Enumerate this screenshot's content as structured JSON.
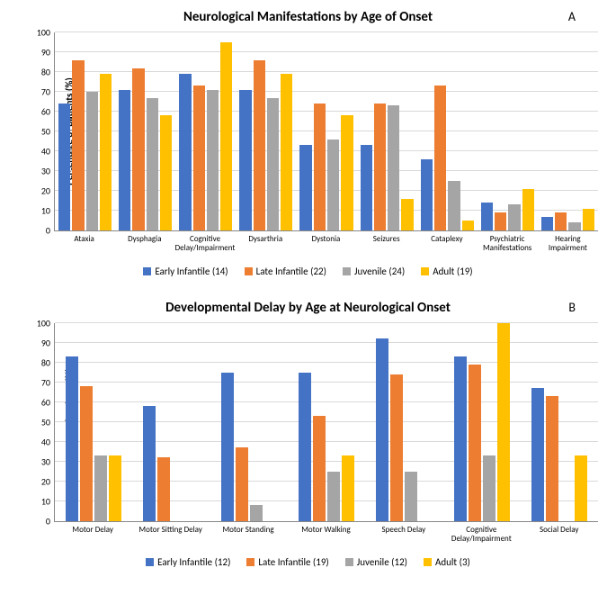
{
  "colors": {
    "series": [
      "#4472c4",
      "#ed7d31",
      "#a5a5a5",
      "#ffc000"
    ],
    "grid": "#d9d9d9",
    "axis": "#888888",
    "bg": "#ffffff"
  },
  "yAxis": {
    "label": "Percentage of patients (%)",
    "min": 0,
    "max": 100,
    "step": 10,
    "label_fontsize": 11,
    "tick_fontsize": 10
  },
  "chartA": {
    "title": "Neurological Manifestations by Age of Onset",
    "title_fontsize": 15,
    "panel": "A",
    "series": [
      "Early Infantile (14)",
      "Late Infantile (22)",
      "Juvenile (24)",
      "Adult (19)"
    ],
    "categories": [
      {
        "label": "Ataxia",
        "values": [
          64,
          86,
          70,
          79
        ]
      },
      {
        "label": "Dysphagia",
        "values": [
          71,
          82,
          67,
          58
        ]
      },
      {
        "label": "Cognitive Delay/Impairment",
        "values": [
          79,
          73,
          71,
          95
        ]
      },
      {
        "label": "Dysarthria",
        "values": [
          71,
          86,
          67,
          79
        ]
      },
      {
        "label": "Dystonia",
        "values": [
          43,
          64,
          46,
          58
        ]
      },
      {
        "label": "Seizures",
        "values": [
          43,
          64,
          63,
          16
        ]
      },
      {
        "label": "Cataplexy",
        "values": [
          36,
          73,
          25,
          5
        ]
      },
      {
        "label": "Psychiatric Manifestations",
        "values": [
          14,
          9,
          13,
          21
        ]
      },
      {
        "label": "Hearing Impairment",
        "values": [
          7,
          9,
          4,
          11
        ]
      }
    ]
  },
  "chartB": {
    "title": "Developmental Delay by Age at Neurological Onset",
    "title_fontsize": 15,
    "panel": "B",
    "series": [
      "Early Infantile (12)",
      "Late Infantile (19)",
      "Juvenile (12)",
      "Adult (3)"
    ],
    "categories": [
      {
        "label": "Motor Delay",
        "values": [
          83,
          68,
          33,
          33
        ]
      },
      {
        "label": "Motor Sitting Delay",
        "values": [
          58,
          32,
          0,
          0
        ]
      },
      {
        "label": "Motor Standing",
        "values": [
          75,
          37,
          8,
          0
        ]
      },
      {
        "label": "Motor Walking",
        "values": [
          75,
          53,
          25,
          33
        ]
      },
      {
        "label": "Speech Delay",
        "values": [
          92,
          74,
          25,
          0
        ]
      },
      {
        "label": "Cognitive Delay/Impairment",
        "values": [
          83,
          79,
          33,
          100
        ]
      },
      {
        "label": "Social Delay",
        "values": [
          67,
          63,
          0,
          33
        ]
      }
    ]
  }
}
